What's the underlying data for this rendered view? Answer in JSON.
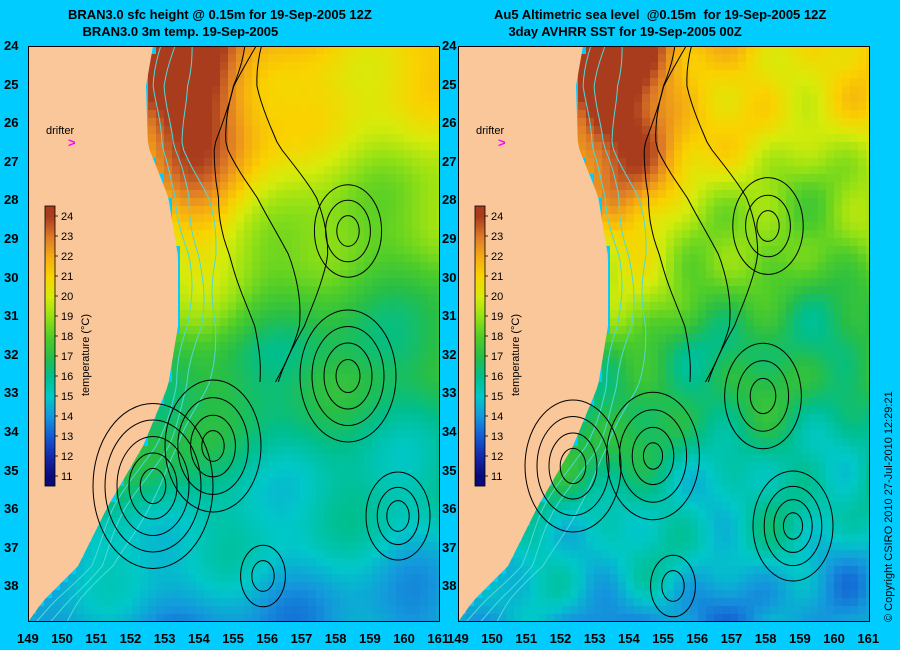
{
  "left_panel": {
    "title_line1": "BRAN3.0 sfc height @ 0.15m for 19-Sep-2005 12Z",
    "title_line2": "BRAN3.0 3m temp. 19-Sep-2005"
  },
  "right_panel": {
    "title_line1": "Au5 Altimetric sea level  @0.15m  for 19-Sep-2005 12Z",
    "title_line2": "3day AVHRR SST for 19-Sep-2005 00Z"
  },
  "drifter_label": "drifter",
  "drifter_marker": ">",
  "colorbar": {
    "label": "temperature (°C)",
    "ticks": [
      "24",
      "23",
      "22",
      "21",
      "20",
      "19",
      "18",
      "17",
      "16",
      "15",
      "14",
      "13",
      "12",
      "11"
    ]
  },
  "lat_ticks": [
    "24",
    "25",
    "26",
    "27",
    "28",
    "29",
    "30",
    "31",
    "32",
    "33",
    "34",
    "35",
    "36",
    "37",
    "38"
  ],
  "lon_ticks": [
    "149",
    "150",
    "151",
    "152",
    "153",
    "154",
    "155",
    "156",
    "157",
    "158",
    "159",
    "160",
    "161"
  ],
  "copyright": "© Copyright CSIRO 2010    27-Jul-2010 12:29:21",
  "colors": {
    "background": "#00ccff",
    "land": "#f9c79a",
    "drifter": "#ff00ff",
    "contour": "#000000",
    "bathymetry": "#4dd9d9"
  }
}
